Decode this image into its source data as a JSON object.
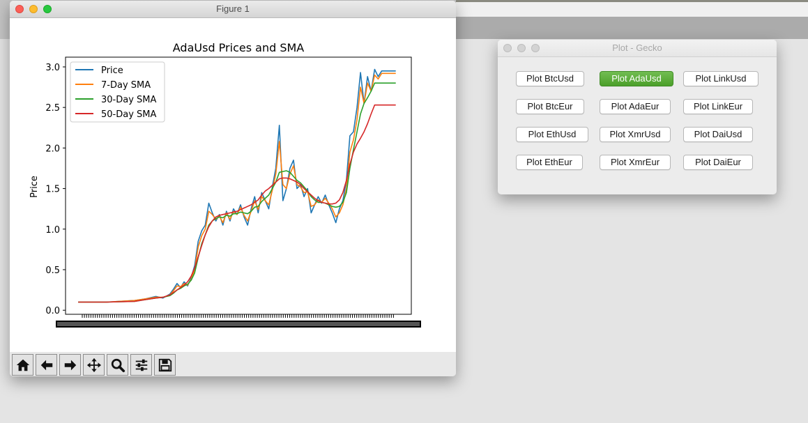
{
  "figure_window": {
    "title": "Figure 1",
    "toolbar": [
      {
        "icon": "home-icon",
        "name": "home-button"
      },
      {
        "icon": "back-arrow-icon",
        "name": "back-button"
      },
      {
        "icon": "forward-arrow-icon",
        "name": "forward-button"
      },
      {
        "icon": "pan-move-icon",
        "name": "pan-button"
      },
      {
        "icon": "zoom-magnifier-icon",
        "name": "zoom-button"
      },
      {
        "icon": "subplots-sliders-icon",
        "name": "configure-subplots-button"
      },
      {
        "icon": "save-floppy-icon",
        "name": "save-button"
      }
    ]
  },
  "gecko_window": {
    "title": "Plot - Gecko",
    "buttons": [
      {
        "label": "Plot BtcUsd",
        "active": false
      },
      {
        "label": "Plot AdaUsd",
        "active": true
      },
      {
        "label": "Plot LinkUsd",
        "active": false
      },
      {
        "label": "Plot BtcEur",
        "active": false
      },
      {
        "label": "Plot AdaEur",
        "active": false
      },
      {
        "label": "Plot LinkEur",
        "active": false
      },
      {
        "label": "Plot EthUsd",
        "active": false
      },
      {
        "label": "Plot XmrUsd",
        "active": false
      },
      {
        "label": "Plot DaiUsd",
        "active": false
      },
      {
        "label": "Plot EthEur",
        "active": false
      },
      {
        "label": "Plot XmrEur",
        "active": false
      },
      {
        "label": "Plot DaiEur",
        "active": false
      }
    ],
    "active_color": "#56a832"
  },
  "chart_data": {
    "type": "line",
    "title": "AdaUsd Prices and SMA",
    "xlabel": "",
    "ylabel": "Price",
    "ylim": [
      -0.05,
      3.12
    ],
    "yticks": [
      "0.0",
      "0.5",
      "1.0",
      "1.5",
      "2.0",
      "2.5",
      "3.0"
    ],
    "legend_position": "top-left",
    "grid": false,
    "xticks_note": "dense overlapping date tick labels, unreadable",
    "x": [
      0,
      40,
      80,
      95,
      110,
      120,
      130,
      135,
      140,
      145,
      150,
      155,
      160,
      165,
      170,
      175,
      180,
      185,
      190,
      195,
      200,
      205,
      210,
      215,
      220,
      225,
      230,
      235,
      240,
      245,
      250,
      255,
      260,
      265,
      270,
      275,
      280,
      285,
      290,
      295,
      300,
      305,
      310,
      315,
      320,
      325,
      330,
      335,
      340,
      345,
      350,
      355,
      360,
      365,
      370,
      375,
      380,
      385,
      390,
      395,
      400,
      405,
      410,
      415,
      420,
      425,
      430,
      435,
      440,
      445,
      450
    ],
    "series": [
      {
        "name": "Price",
        "color": "#1f77b4",
        "values": [
          0.1,
          0.1,
          0.12,
          0.14,
          0.17,
          0.15,
          0.2,
          0.26,
          0.33,
          0.28,
          0.35,
          0.3,
          0.4,
          0.55,
          0.85,
          0.98,
          1.05,
          1.32,
          1.2,
          1.1,
          1.18,
          1.05,
          1.22,
          1.1,
          1.25,
          1.18,
          1.3,
          1.15,
          1.05,
          1.25,
          1.4,
          1.2,
          1.45,
          1.35,
          1.25,
          1.52,
          1.75,
          2.28,
          1.35,
          1.5,
          1.75,
          1.85,
          1.5,
          1.55,
          1.4,
          1.5,
          1.2,
          1.3,
          1.4,
          1.32,
          1.42,
          1.3,
          1.2,
          1.08,
          1.25,
          1.35,
          1.6,
          2.15,
          2.2,
          2.5,
          2.93,
          2.55,
          2.88,
          2.7,
          2.97,
          2.88,
          2.95,
          2.95,
          2.95,
          2.95,
          2.95
        ]
      },
      {
        "name": "7-Day SMA",
        "color": "#ff7f0e",
        "values": [
          0.1,
          0.1,
          0.12,
          0.14,
          0.16,
          0.16,
          0.19,
          0.24,
          0.3,
          0.29,
          0.33,
          0.31,
          0.38,
          0.5,
          0.78,
          0.92,
          1.0,
          1.22,
          1.18,
          1.12,
          1.16,
          1.08,
          1.2,
          1.12,
          1.22,
          1.18,
          1.27,
          1.17,
          1.1,
          1.22,
          1.35,
          1.24,
          1.4,
          1.35,
          1.3,
          1.48,
          1.68,
          2.08,
          1.55,
          1.5,
          1.68,
          1.78,
          1.55,
          1.52,
          1.45,
          1.46,
          1.28,
          1.3,
          1.36,
          1.33,
          1.38,
          1.32,
          1.25,
          1.15,
          1.2,
          1.3,
          1.5,
          1.95,
          2.1,
          2.35,
          2.75,
          2.55,
          2.8,
          2.7,
          2.9,
          2.85,
          2.92,
          2.92,
          2.92,
          2.92,
          2.92
        ]
      },
      {
        "name": "30-Day SMA",
        "color": "#2ca02c",
        "values": [
          0.1,
          0.1,
          0.11,
          0.13,
          0.15,
          0.16,
          0.18,
          0.21,
          0.25,
          0.27,
          0.3,
          0.32,
          0.37,
          0.46,
          0.65,
          0.82,
          0.93,
          1.05,
          1.1,
          1.13,
          1.15,
          1.14,
          1.17,
          1.16,
          1.19,
          1.19,
          1.21,
          1.2,
          1.19,
          1.22,
          1.27,
          1.28,
          1.34,
          1.38,
          1.42,
          1.5,
          1.58,
          1.7,
          1.71,
          1.72,
          1.7,
          1.65,
          1.6,
          1.57,
          1.52,
          1.47,
          1.4,
          1.36,
          1.33,
          1.33,
          1.32,
          1.3,
          1.28,
          1.27,
          1.28,
          1.33,
          1.45,
          1.75,
          1.98,
          2.2,
          2.42,
          2.55,
          2.62,
          2.7,
          2.8,
          2.8,
          2.8,
          2.8,
          2.8,
          2.8,
          2.8
        ]
      },
      {
        "name": "50-Day SMA",
        "color": "#d62728",
        "values": [
          0.1,
          0.1,
          0.11,
          0.13,
          0.15,
          0.16,
          0.19,
          0.22,
          0.25,
          0.28,
          0.31,
          0.35,
          0.42,
          0.52,
          0.66,
          0.8,
          0.93,
          1.03,
          1.1,
          1.15,
          1.17,
          1.18,
          1.19,
          1.2,
          1.21,
          1.22,
          1.24,
          1.26,
          1.28,
          1.3,
          1.33,
          1.36,
          1.42,
          1.47,
          1.5,
          1.54,
          1.58,
          1.62,
          1.63,
          1.63,
          1.62,
          1.6,
          1.58,
          1.55,
          1.5,
          1.46,
          1.42,
          1.38,
          1.35,
          1.33,
          1.32,
          1.31,
          1.31,
          1.32,
          1.36,
          1.45,
          1.6,
          1.8,
          1.95,
          2.05,
          2.12,
          2.2,
          2.3,
          2.42,
          2.53,
          2.53,
          2.53,
          2.53,
          2.53,
          2.53,
          2.53
        ]
      }
    ]
  }
}
